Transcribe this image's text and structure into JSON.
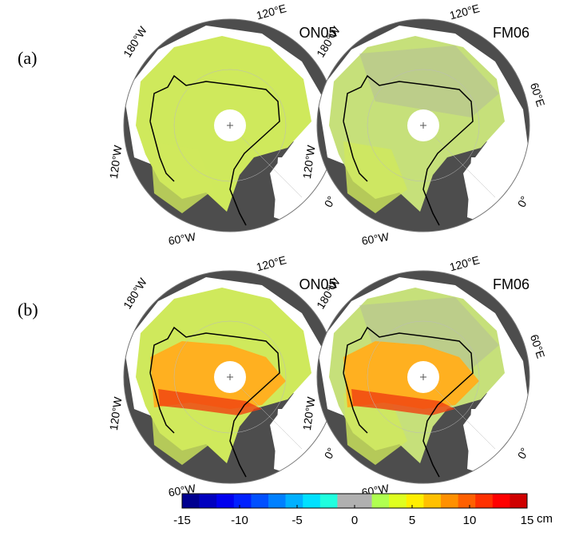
{
  "row_labels": [
    "(a)",
    "(b)"
  ],
  "panels": [
    {
      "title": "ON05"
    },
    {
      "title": "FM06"
    },
    {
      "title": "ON05"
    },
    {
      "title": "FM06"
    }
  ],
  "longitude_labels": [
    "120°E",
    "180°W",
    "60°E",
    "120°W",
    "0°",
    "60°W"
  ],
  "colorbar": {
    "lim": [
      -15,
      15
    ],
    "ticks": [
      -15,
      -10,
      -5,
      0,
      5,
      10,
      15
    ],
    "unit": "cm",
    "colors": [
      "#00008f",
      "#0000bf",
      "#0000ef",
      "#0020ff",
      "#0050ff",
      "#0080ff",
      "#00b0ff",
      "#00e0ff",
      "#20ffdf",
      "#b0b0b0",
      "#b0b0b0",
      "#b0ff50",
      "#dfff20",
      "#ffef00",
      "#ffc000",
      "#ff9000",
      "#ff6000",
      "#ff3000",
      "#ff0000",
      "#cf0000"
    ]
  }
}
